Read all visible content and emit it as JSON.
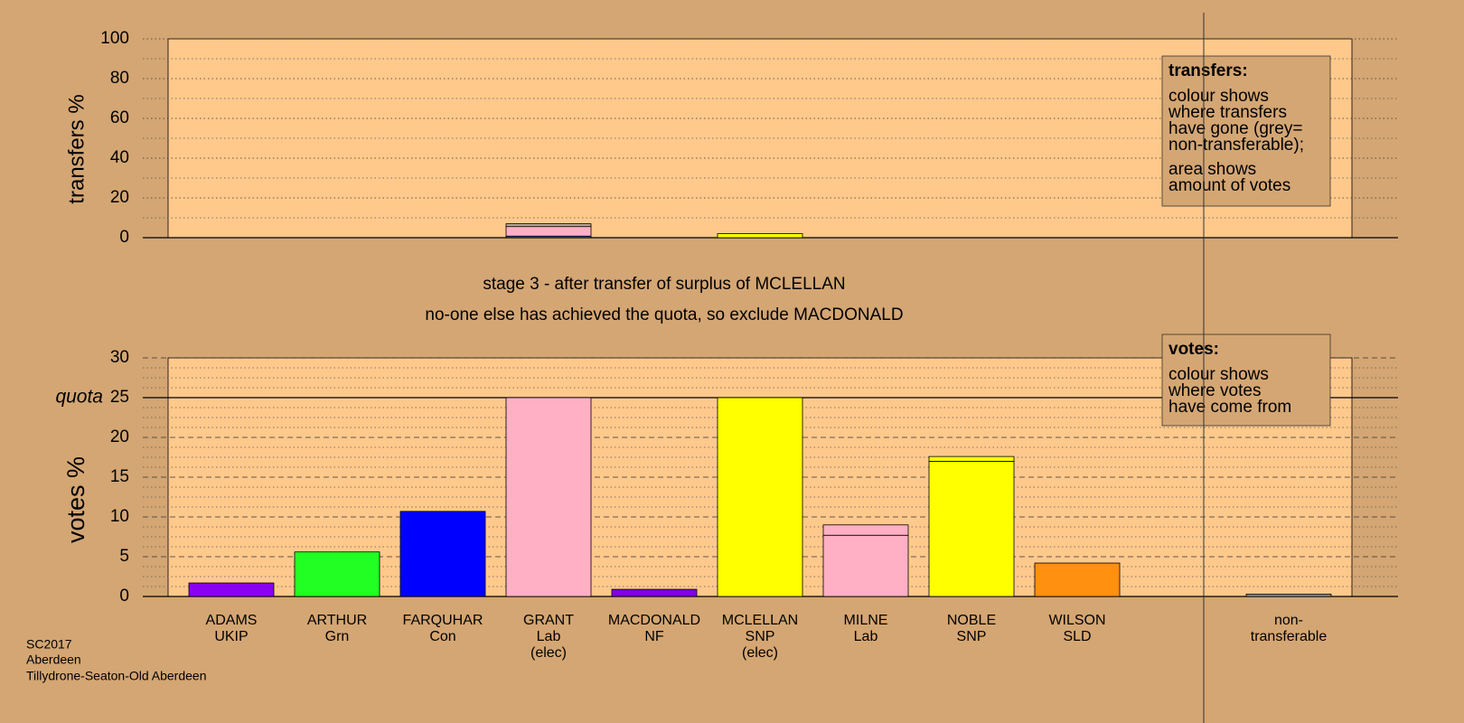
{
  "chart_data": [
    {
      "type": "bar",
      "ylabel": "transfers %",
      "ylim": [
        0,
        100
      ],
      "yticks": [
        0,
        20,
        40,
        60,
        80,
        100
      ],
      "grid": "dotted",
      "minor": 2,
      "series": [
        {
          "color": "#3a5ab0",
          "values": [
            null,
            null,
            null,
            0.8,
            null,
            null,
            null,
            null,
            null,
            null,
            null
          ]
        },
        {
          "color": "#ffb0c4",
          "values": [
            null,
            null,
            null,
            4.8,
            null,
            null,
            null,
            null,
            null,
            null,
            null
          ]
        },
        {
          "color": "#b8a898",
          "values": [
            null,
            null,
            null,
            1.4,
            null,
            null,
            null,
            null,
            null,
            null,
            null
          ]
        },
        {
          "color": "#ffff00",
          "values": [
            null,
            null,
            null,
            null,
            null,
            2.0,
            null,
            null,
            null,
            null,
            null
          ]
        }
      ],
      "note": {
        "title": "transfers:",
        "lines": [
          "colour shows",
          "where transfers",
          "have gone (grey=",
          "non-transferable);",
          "area shows",
          "amount of votes"
        ]
      }
    },
    {
      "type": "bar",
      "ylabel": "votes %",
      "ylim": [
        0,
        30
      ],
      "yticks": [
        0,
        5,
        10,
        15,
        20,
        25,
        30
      ],
      "grid": "dashed",
      "minor": 4,
      "quota": {
        "label": "quota",
        "value": 25
      },
      "categories": [
        [
          "ADAMS",
          "UKIP"
        ],
        [
          "ARTHUR",
          "Grn"
        ],
        [
          "FARQUHAR",
          "Con"
        ],
        [
          "GRANT",
          "Lab",
          "(elec)"
        ],
        [
          "MACDONALD",
          "NF"
        ],
        [
          "MCLELLAN",
          "SNP",
          "(elec)"
        ],
        [
          "MILNE",
          "Lab"
        ],
        [
          "NOBLE",
          "SNP"
        ],
        [
          "WILSON",
          "SLD"
        ],
        null,
        [
          "non-",
          "transferable"
        ]
      ],
      "series": [
        {
          "colors": [
            "#8a00f0",
            "#22ff22",
            "#0000ff",
            "#ffb0c4",
            "#8000e0",
            "#ffff00",
            "#ffb0c4",
            "#ffff00",
            "#ff9010",
            null,
            "#a09080"
          ],
          "values": [
            1.7,
            5.6,
            10.7,
            25,
            0.9,
            25,
            7.7,
            17.0,
            4.2,
            null,
            0.3
          ]
        },
        {
          "color": "#ffb0c4",
          "values": [
            null,
            null,
            null,
            null,
            null,
            null,
            1.3,
            null,
            null,
            null,
            null
          ]
        },
        {
          "color": "#ffff00",
          "values": [
            null,
            null,
            null,
            null,
            null,
            null,
            null,
            0.6,
            null,
            null,
            null
          ]
        }
      ],
      "note": {
        "title": "votes:",
        "lines": [
          "colour shows",
          "where votes",
          "have come from"
        ]
      }
    }
  ],
  "stage_text": [
    "stage 3 - after transfer of surplus of MCLELLAN",
    "no-one else has achieved the quota, so exclude MACDONALD"
  ],
  "footer": [
    "SC2017",
    "Aberdeen",
    "Tillydrone-Seaton-Old Aberdeen"
  ]
}
